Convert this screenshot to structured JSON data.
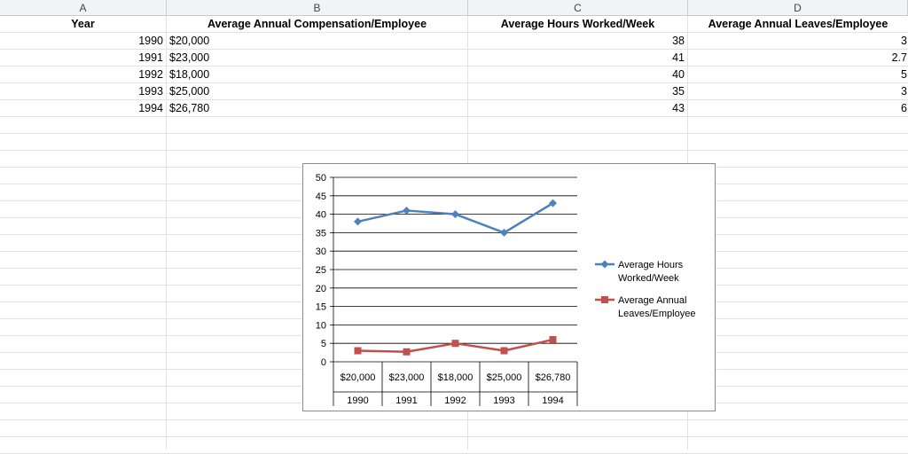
{
  "sheet": {
    "columns": [
      "A",
      "B",
      "C",
      "D"
    ],
    "headers": [
      "Year",
      "Average Annual Compensation/Employee",
      "Average Hours Worked/Week",
      "Average Annual Leaves/Employee"
    ],
    "rows": [
      {
        "year": "1990",
        "comp": "$20,000",
        "hours": "38",
        "leaves": "3"
      },
      {
        "year": "1991",
        "comp": "$23,000",
        "hours": "41",
        "leaves": "2.7"
      },
      {
        "year": "1992",
        "comp": "$18,000",
        "hours": "40",
        "leaves": "5"
      },
      {
        "year": "1993",
        "comp": "$25,000",
        "hours": "35",
        "leaves": "3"
      },
      {
        "year": "1994",
        "comp": "$26,780",
        "hours": "43",
        "leaves": "6"
      }
    ]
  },
  "chart_data": {
    "type": "line",
    "categories_outer": [
      "1990",
      "1991",
      "1992",
      "1993",
      "1994"
    ],
    "categories_inner": [
      "$20,000",
      "$23,000",
      "$18,000",
      "$25,000",
      "$26,780"
    ],
    "series": [
      {
        "name": "Average Hours Worked/Week",
        "legend_lines": [
          "Average Hours",
          "Worked/Week"
        ],
        "values": [
          38,
          41,
          40,
          35,
          43
        ],
        "color": "#4f81bd",
        "marker": "diamond"
      },
      {
        "name": "Average Annual Leaves/Employee",
        "legend_lines": [
          "Average Annual",
          "Leaves/Employee"
        ],
        "values": [
          3,
          2.7,
          5,
          3,
          6
        ],
        "color": "#c0504d",
        "marker": "square"
      }
    ],
    "ylim": [
      0,
      50
    ],
    "yticks": [
      "0",
      "5",
      "10",
      "15",
      "20",
      "25",
      "30",
      "35",
      "40",
      "45",
      "50"
    ],
    "grid": true,
    "legend": "right",
    "title": "",
    "xlabel": "",
    "ylabel": ""
  }
}
